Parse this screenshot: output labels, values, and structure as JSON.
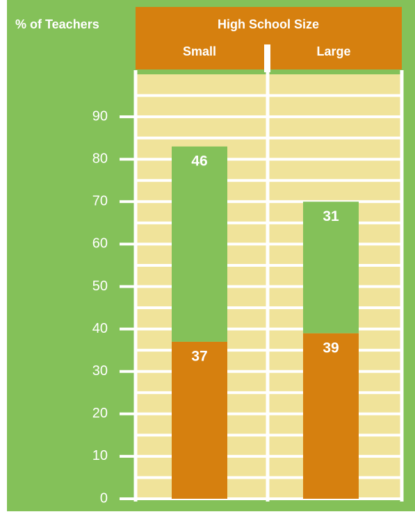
{
  "chart_data": {
    "type": "stacked_bar",
    "y_label": "% of Teachers",
    "title": "High School Size",
    "categories": [
      "Small",
      "Large"
    ],
    "series": [
      {
        "color": "#d6800f",
        "values": [
          37,
          39
        ]
      },
      {
        "color": "#84c159",
        "values": [
          46,
          31
        ]
      }
    ],
    "ylim": [
      0,
      100
    ],
    "yticks": [
      0,
      10,
      20,
      30,
      40,
      50,
      60,
      70,
      80,
      90
    ],
    "minor_yticks": [
      5,
      15,
      25,
      35,
      45,
      55,
      65,
      75,
      85,
      95
    ],
    "grid": true
  }
}
